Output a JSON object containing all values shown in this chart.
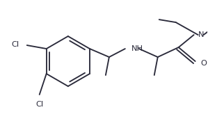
{
  "bg_color": "#ffffff",
  "line_color": "#2a2a3a",
  "line_width": 1.35,
  "font_size": 8.2,
  "label_Cl": "Cl",
  "label_NH": "NH",
  "label_N": "N",
  "label_O": "O",
  "figw": 2.99,
  "figh": 1.71,
  "dpi": 100
}
